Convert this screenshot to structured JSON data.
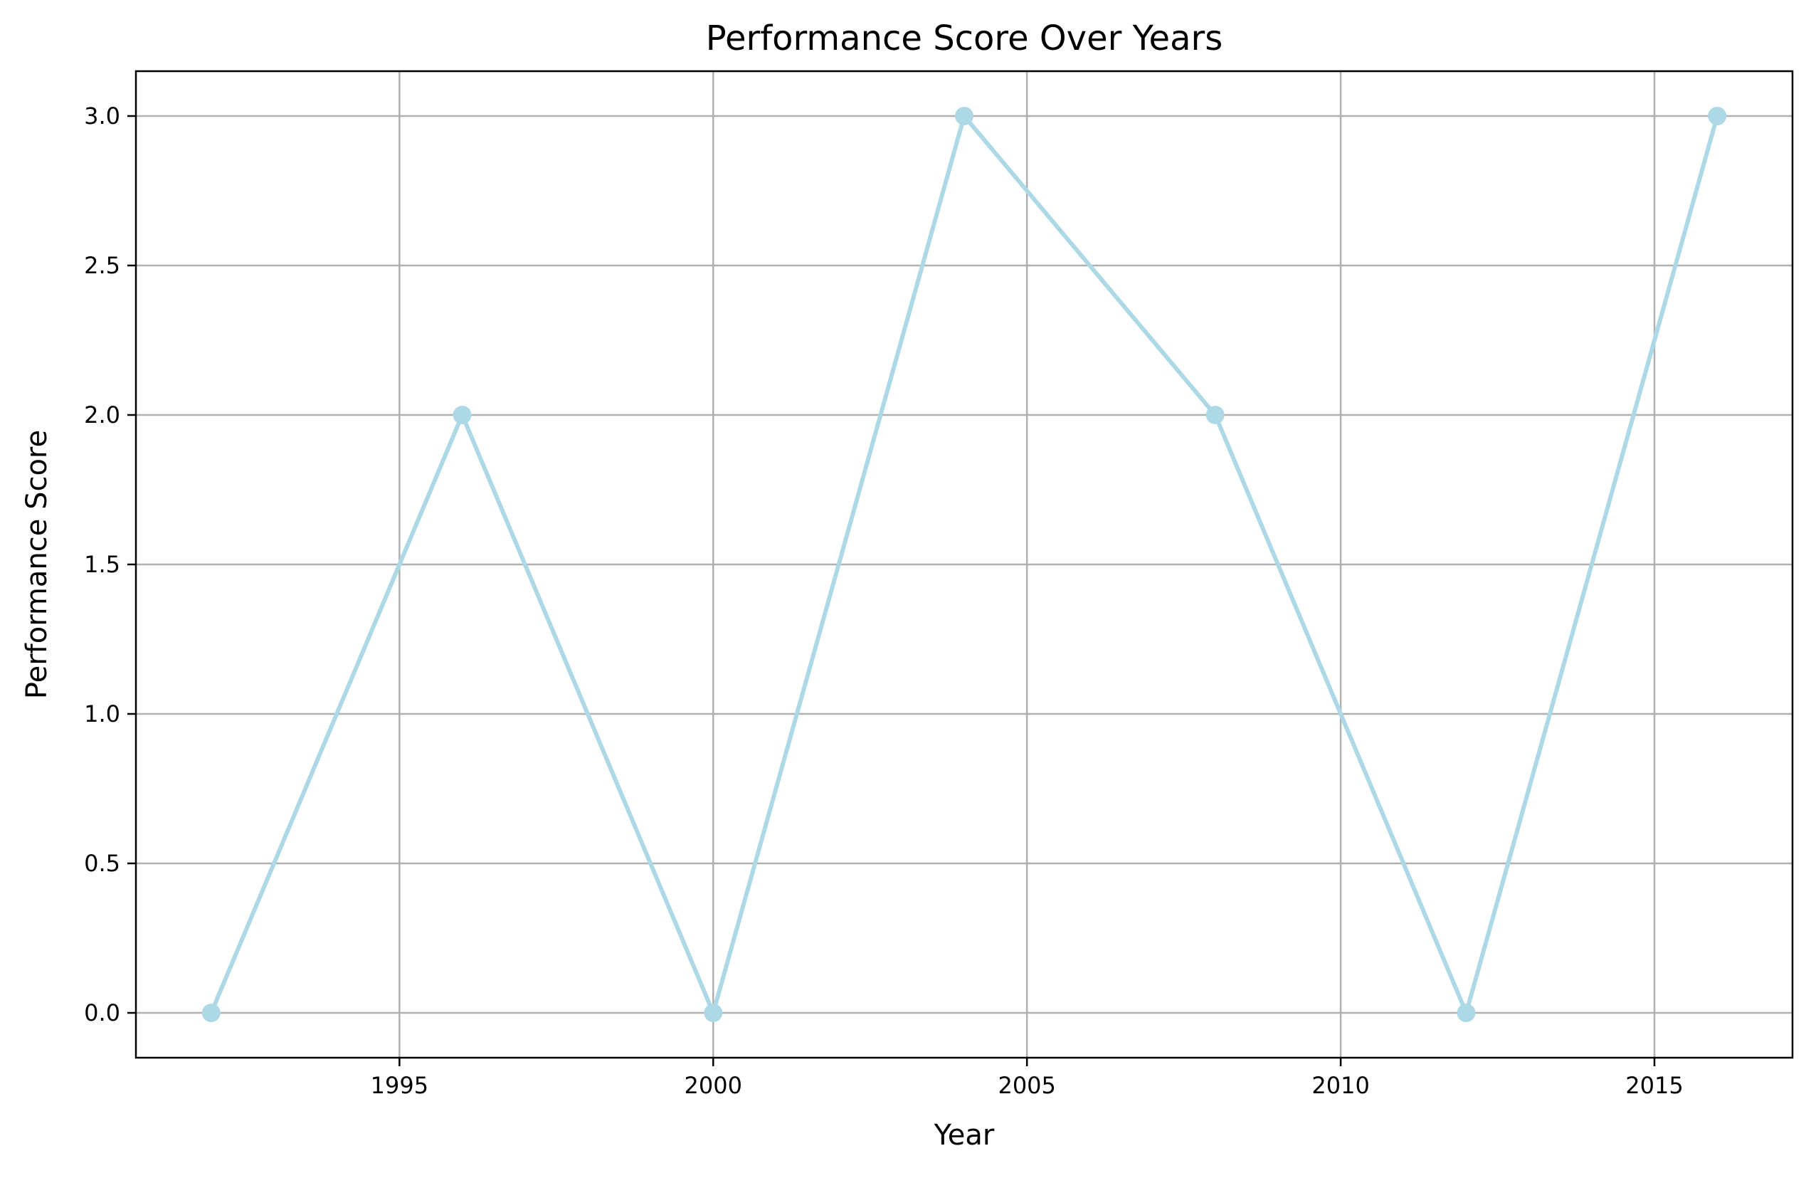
{
  "chart_data": {
    "type": "line",
    "title": "Performance Score Over Years",
    "xlabel": "Year",
    "ylabel": "Performance Score",
    "xlim": [
      1990.8,
      2017.2
    ],
    "ylim": [
      -0.15,
      3.15
    ],
    "xticks": [
      1995,
      2000,
      2005,
      2010,
      2015
    ],
    "yticks": [
      0.0,
      0.5,
      1.0,
      1.5,
      2.0,
      2.5,
      3.0
    ],
    "ytick_labels": [
      "0.0",
      "0.5",
      "1.0",
      "1.5",
      "2.0",
      "2.5",
      "3.0"
    ],
    "grid": true,
    "legend": "none",
    "series": [
      {
        "x": [
          1992,
          1996,
          2000,
          2004,
          2008,
          2012,
          2016
        ],
        "values": [
          0,
          2,
          0,
          3,
          2,
          0,
          3
        ],
        "color": "#add8e6",
        "marker": "circle"
      }
    ]
  }
}
